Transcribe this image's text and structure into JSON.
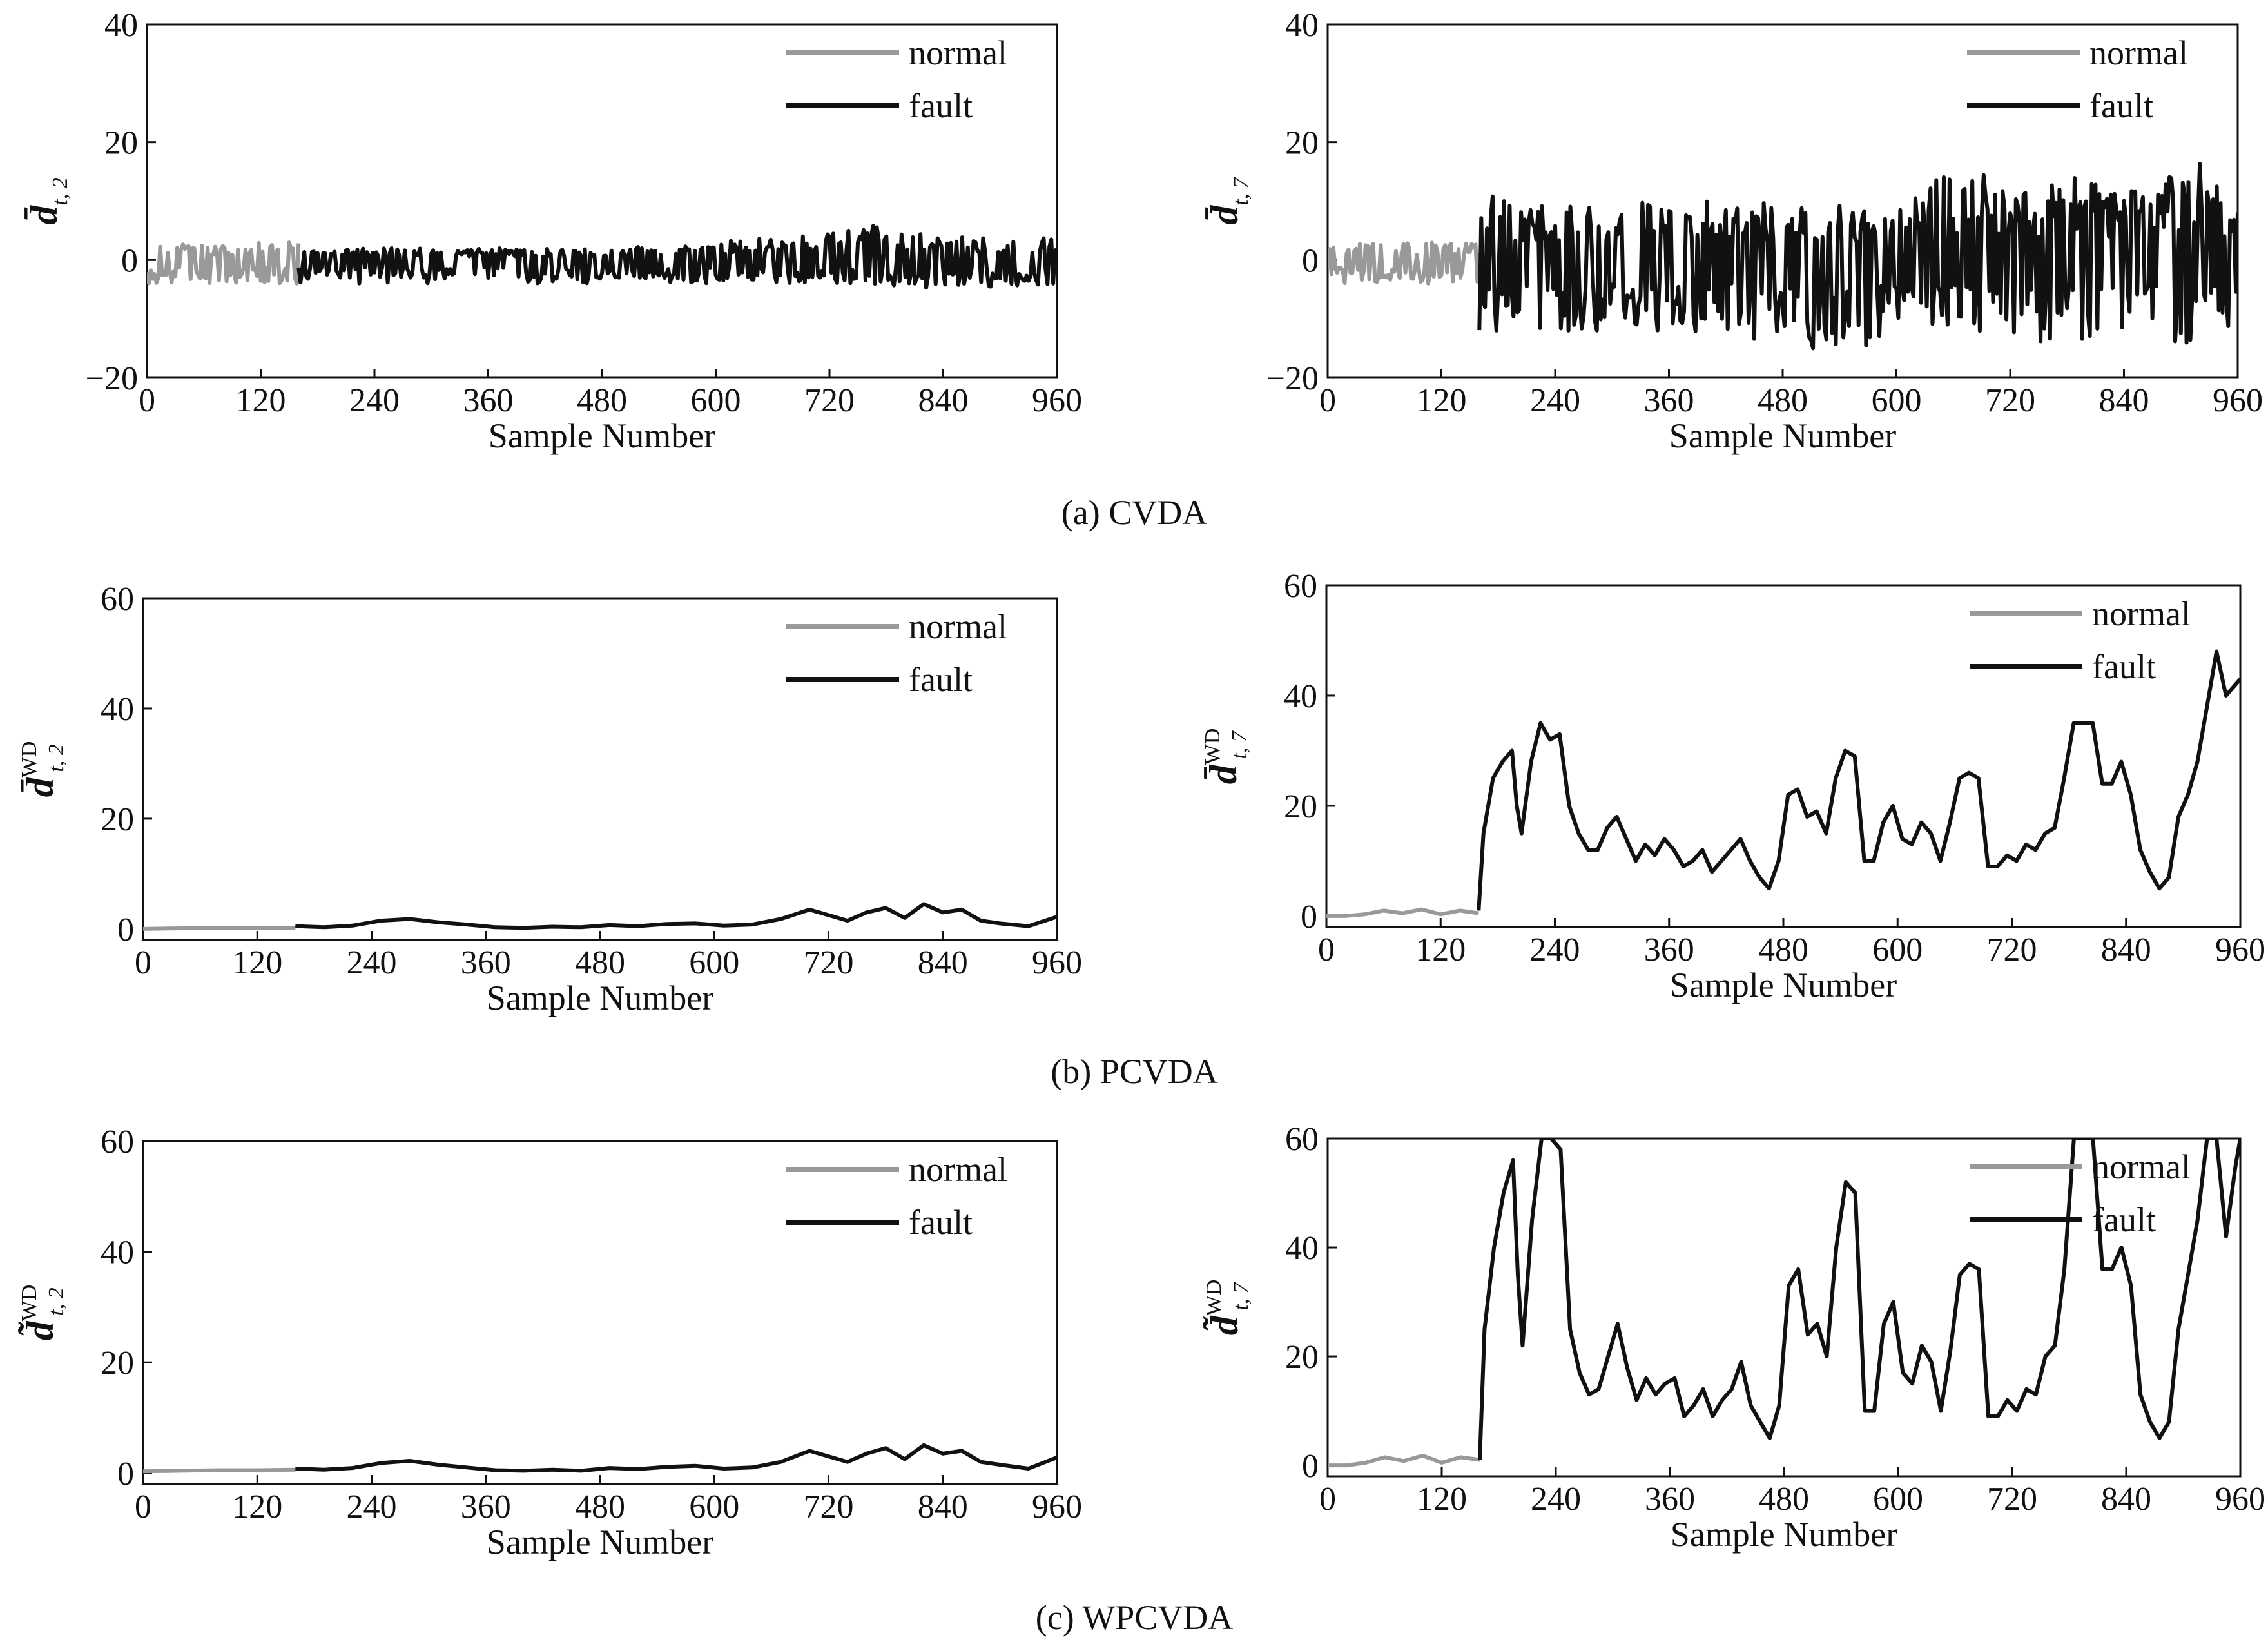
{
  "chart_data": [
    {
      "id": "a-left",
      "type": "line",
      "group": "CVDA",
      "xlabel": "Sample Number",
      "ylabel": "d̄",
      "ylabel_sub": "t, 2",
      "ylabel_sup": "",
      "xlim": [
        0,
        960
      ],
      "ylim": [
        -20,
        40
      ],
      "xticks": [
        "0",
        "120",
        "240",
        "360",
        "480",
        "600",
        "720",
        "840",
        "960"
      ],
      "yticks": [
        "-20",
        "0",
        "20",
        "40"
      ],
      "ytick_values": [
        -20,
        0,
        20,
        40
      ],
      "legend": [
        "normal",
        "fault"
      ],
      "legend_position": "top-right",
      "colors": {
        "normal": "#999999",
        "fault": "#111111"
      },
      "series": [
        {
          "name": "normal",
          "x": [
            0,
            160
          ],
          "envelope": [
            [
              -4,
              3
            ],
            [
              -4,
              3
            ]
          ]
        },
        {
          "name": "fault",
          "x": [
            160,
            240,
            360,
            480,
            600,
            660,
            720,
            760,
            840,
            960
          ],
          "envelope": [
            [
              -4,
              2
            ],
            [
              -4,
              2
            ],
            [
              -4,
              2
            ],
            [
              -4,
              2
            ],
            [
              -4,
              3
            ],
            [
              -4,
              4
            ],
            [
              -4,
              5
            ],
            [
              -4,
              6
            ],
            [
              -5,
              4
            ],
            [
              -4,
              4
            ]
          ]
        }
      ]
    },
    {
      "id": "a-right",
      "type": "line",
      "group": "CVDA",
      "xlabel": "Sample Number",
      "ylabel": "d̄",
      "ylabel_sub": "t, 7",
      "ylabel_sup": "",
      "xlim": [
        0,
        960
      ],
      "ylim": [
        -20,
        40
      ],
      "xticks": [
        "0",
        "120",
        "240",
        "360",
        "480",
        "600",
        "720",
        "840",
        "960"
      ],
      "yticks": [
        "-20",
        "0",
        "20",
        "40"
      ],
      "ytick_values": [
        -20,
        0,
        20,
        40
      ],
      "legend": [
        "normal",
        "fault"
      ],
      "legend_position": "top-right",
      "colors": {
        "normal": "#999999",
        "fault": "#111111"
      },
      "series": [
        {
          "name": "normal",
          "x": [
            0,
            160
          ],
          "envelope": [
            [
              -4,
              3
            ],
            [
              -4,
              3
            ]
          ]
        },
        {
          "name": "fault",
          "x": [
            160,
            240,
            360,
            480,
            560,
            600,
            680,
            720,
            800,
            840,
            920,
            960
          ],
          "envelope": [
            [
              -14,
              12
            ],
            [
              -12,
              9
            ],
            [
              -12,
              10
            ],
            [
              -14,
              10
            ],
            [
              -17,
              9
            ],
            [
              -12,
              11
            ],
            [
              -12,
              16
            ],
            [
              -14,
              11
            ],
            [
              -14,
              15
            ],
            [
              -12,
              11
            ],
            [
              -15,
              19
            ],
            [
              -12,
              9
            ]
          ]
        }
      ]
    },
    {
      "id": "b-left",
      "type": "line",
      "group": "PCVDA",
      "xlabel": "Sample Number",
      "ylabel": "d̄",
      "ylabel_sub": "t, 2",
      "ylabel_sup": "WD",
      "xlim": [
        0,
        960
      ],
      "ylim": [
        -2,
        60
      ],
      "xticks": [
        "0",
        "120",
        "240",
        "360",
        "480",
        "600",
        "720",
        "840",
        "960"
      ],
      "yticks": [
        "0",
        "20",
        "40",
        "60"
      ],
      "ytick_values": [
        0,
        20,
        40,
        60
      ],
      "legend": [
        "normal",
        "fault"
      ],
      "legend_position": "top-right",
      "colors": {
        "normal": "#999999",
        "fault": "#111111"
      },
      "series": [
        {
          "name": "normal",
          "x": [
            0,
            40,
            80,
            120,
            160
          ],
          "y": [
            0,
            0.1,
            0.2,
            0.1,
            0.2
          ]
        },
        {
          "name": "fault",
          "x": [
            160,
            190,
            220,
            250,
            280,
            310,
            340,
            370,
            400,
            430,
            460,
            490,
            520,
            550,
            580,
            610,
            640,
            670,
            700,
            720,
            740,
            760,
            780,
            800,
            820,
            840,
            860,
            880,
            900,
            930,
            960
          ],
          "y": [
            0.5,
            0.3,
            0.6,
            1.5,
            1.8,
            1.2,
            0.8,
            0.3,
            0.2,
            0.4,
            0.3,
            0.7,
            0.5,
            0.9,
            1.0,
            0.6,
            0.8,
            1.8,
            3.5,
            2.5,
            1.5,
            3.0,
            3.8,
            2.0,
            4.5,
            3.0,
            3.5,
            1.5,
            1.0,
            0.5,
            2.2
          ]
        }
      ]
    },
    {
      "id": "b-right",
      "type": "line",
      "group": "PCVDA",
      "xlabel": "Sample Number",
      "ylabel": "d̄",
      "ylabel_sub": "t, 7",
      "ylabel_sup": "WD",
      "xlim": [
        0,
        960
      ],
      "ylim": [
        -2,
        60
      ],
      "xticks": [
        "0",
        "120",
        "240",
        "360",
        "480",
        "600",
        "720",
        "840",
        "960"
      ],
      "yticks": [
        "0",
        "20",
        "40",
        "60"
      ],
      "ytick_values": [
        0,
        20,
        40,
        60
      ],
      "legend": [
        "normal",
        "fault"
      ],
      "legend_position": "top-right",
      "colors": {
        "normal": "#999999",
        "fault": "#111111"
      },
      "series": [
        {
          "name": "normal",
          "x": [
            0,
            20,
            40,
            60,
            80,
            100,
            120,
            140,
            160
          ],
          "y": [
            0,
            0,
            0.3,
            1.0,
            0.5,
            1.2,
            0.3,
            1.0,
            0.5
          ]
        },
        {
          "name": "fault",
          "x": [
            160,
            165,
            175,
            185,
            195,
            200,
            205,
            215,
            225,
            235,
            245,
            255,
            265,
            275,
            285,
            295,
            305,
            315,
            325,
            335,
            345,
            355,
            365,
            375,
            385,
            395,
            405,
            415,
            425,
            435,
            445,
            455,
            465,
            475,
            485,
            495,
            505,
            515,
            525,
            535,
            545,
            555,
            565,
            575,
            585,
            595,
            605,
            615,
            625,
            635,
            645,
            655,
            665,
            675,
            685,
            695,
            705,
            715,
            725,
            735,
            745,
            755,
            765,
            775,
            785,
            795,
            805,
            815,
            825,
            835,
            845,
            855,
            865,
            875,
            885,
            895,
            905,
            915,
            925,
            935,
            945,
            955,
            960
          ],
          "y": [
            1,
            15,
            25,
            28,
            30,
            20,
            15,
            28,
            35,
            32,
            33,
            20,
            15,
            12,
            12,
            16,
            18,
            14,
            10,
            13,
            11,
            14,
            12,
            9,
            10,
            12,
            8,
            10,
            12,
            14,
            10,
            7,
            5,
            10,
            22,
            23,
            18,
            19,
            15,
            25,
            30,
            29,
            10,
            10,
            17,
            20,
            14,
            13,
            17,
            15,
            10,
            17,
            25,
            26,
            25,
            9,
            9,
            11,
            10,
            13,
            12,
            15,
            16,
            25,
            35,
            35,
            35,
            24,
            24,
            28,
            22,
            12,
            8,
            5,
            7,
            18,
            22,
            28,
            38,
            48,
            40,
            42,
            43
          ]
        }
      ]
    },
    {
      "id": "c-left",
      "type": "line",
      "group": "WPCVDA",
      "xlabel": "Sample Number",
      "ylabel": "d̃",
      "ylabel_sub": "t, 2",
      "ylabel_sup": "WD",
      "xlim": [
        0,
        960
      ],
      "ylim": [
        -2,
        60
      ],
      "xticks": [
        "0",
        "120",
        "240",
        "360",
        "480",
        "600",
        "720",
        "840",
        "960"
      ],
      "yticks": [
        "0",
        "20",
        "40",
        "60"
      ],
      "ytick_values": [
        0,
        20,
        40,
        60
      ],
      "legend": [
        "normal",
        "fault"
      ],
      "legend_position": "top-right",
      "colors": {
        "normal": "#999999",
        "fault": "#111111"
      },
      "series": [
        {
          "name": "normal",
          "x": [
            0,
            40,
            80,
            120,
            160
          ],
          "y": [
            0.3,
            0.4,
            0.5,
            0.5,
            0.6
          ]
        },
        {
          "name": "fault",
          "x": [
            160,
            190,
            220,
            250,
            280,
            310,
            340,
            370,
            400,
            430,
            460,
            490,
            520,
            550,
            580,
            610,
            640,
            670,
            700,
            720,
            740,
            760,
            780,
            800,
            820,
            840,
            860,
            880,
            900,
            930,
            960
          ],
          "y": [
            0.8,
            0.6,
            0.9,
            1.8,
            2.2,
            1.5,
            1.0,
            0.5,
            0.4,
            0.6,
            0.4,
            0.9,
            0.7,
            1.1,
            1.3,
            0.8,
            1.0,
            2.0,
            4.0,
            3.0,
            2.0,
            3.5,
            4.5,
            2.5,
            5.0,
            3.5,
            4.0,
            2.0,
            1.5,
            0.8,
            2.8
          ]
        }
      ]
    },
    {
      "id": "c-right",
      "type": "line",
      "group": "WPCVDA",
      "xlabel": "Sample Number",
      "ylabel": "d̃",
      "ylabel_sub": "t, 7",
      "ylabel_sup": "WD",
      "xlim": [
        0,
        960
      ],
      "ylim": [
        -2,
        60
      ],
      "xticks": [
        "0",
        "120",
        "240",
        "360",
        "480",
        "600",
        "720",
        "840",
        "960"
      ],
      "yticks": [
        "0",
        "20",
        "40",
        "60"
      ],
      "ytick_values": [
        0,
        20,
        40,
        60
      ],
      "legend": [
        "normal",
        "fault"
      ],
      "legend_position": "top-right",
      "colors": {
        "normal": "#999999",
        "fault": "#111111"
      },
      "series": [
        {
          "name": "normal",
          "x": [
            0,
            20,
            40,
            60,
            80,
            100,
            120,
            140,
            160
          ],
          "y": [
            0,
            0,
            0.5,
            1.5,
            0.8,
            1.8,
            0.5,
            1.5,
            1.0
          ]
        },
        {
          "name": "fault",
          "x": [
            160,
            165,
            175,
            185,
            195,
            200,
            205,
            215,
            225,
            235,
            245,
            255,
            265,
            275,
            285,
            295,
            305,
            315,
            325,
            335,
            345,
            355,
            365,
            375,
            385,
            395,
            405,
            415,
            425,
            435,
            445,
            455,
            465,
            475,
            485,
            495,
            505,
            515,
            525,
            535,
            545,
            555,
            565,
            575,
            585,
            595,
            605,
            615,
            625,
            635,
            645,
            655,
            665,
            675,
            685,
            695,
            705,
            715,
            725,
            735,
            745,
            755,
            765,
            775,
            785,
            795,
            805,
            815,
            825,
            835,
            845,
            855,
            865,
            875,
            885,
            895,
            905,
            915,
            925,
            935,
            945,
            955,
            960
          ],
          "y": [
            1,
            25,
            40,
            50,
            56,
            35,
            22,
            45,
            60,
            60,
            58,
            25,
            17,
            13,
            14,
            20,
            26,
            18,
            12,
            16,
            13,
            15,
            16,
            9,
            11,
            14,
            9,
            12,
            14,
            19,
            11,
            8,
            5,
            11,
            33,
            36,
            24,
            26,
            20,
            40,
            52,
            50,
            10,
            10,
            26,
            30,
            17,
            15,
            22,
            19,
            10,
            21,
            35,
            37,
            36,
            9,
            9,
            12,
            10,
            14,
            13,
            20,
            22,
            36,
            60,
            60,
            60,
            36,
            36,
            40,
            33,
            13,
            8,
            5,
            8,
            25,
            35,
            45,
            60,
            60,
            42,
            55,
            60
          ]
        }
      ]
    }
  ],
  "captions": {
    "a": "(a) CVDA",
    "b": "(b) PCVDA",
    "c": "(c) WPCVDA"
  }
}
